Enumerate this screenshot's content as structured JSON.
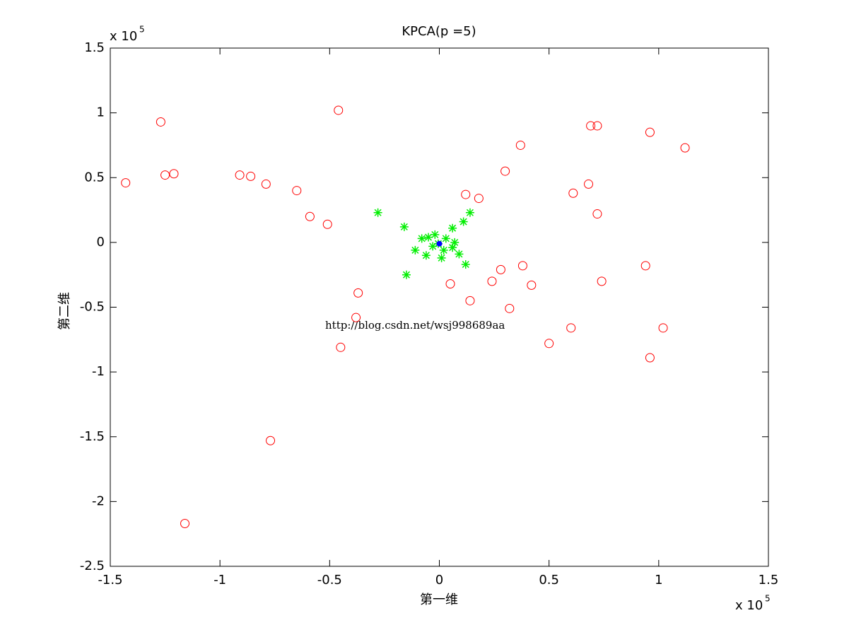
{
  "chart_data": {
    "type": "scatter",
    "title": "KPCA(p =5)",
    "x_label": "第一维",
    "y_label": "第二维",
    "x_multiplier": {
      "base": "x 10",
      "exponent": "5"
    },
    "y_multiplier": {
      "base": "x 10",
      "exponent": "5"
    },
    "annotation": "http://blog.csdn.net/wsj998689aa",
    "xlim": [
      -1.5,
      1.5
    ],
    "xticks": [
      -1.5,
      -1,
      -0.5,
      0,
      0.5,
      1,
      1.5
    ],
    "ylim": [
      -2.5,
      1.5
    ],
    "yticks": [
      -2.5,
      -2,
      -1.5,
      -1,
      -0.5,
      0,
      0.5,
      1,
      1.5
    ],
    "grid": false,
    "series": [
      {
        "color": "#ff0000",
        "marker": "circle",
        "x": [
          -1.43,
          -1.27,
          -1.25,
          -1.21,
          -0.91,
          -0.86,
          -0.79,
          -0.65,
          -0.59,
          -0.51,
          -0.46,
          -0.37,
          -0.38,
          -0.45,
          -0.77,
          -1.16,
          0.12,
          0.18,
          0.3,
          0.37,
          0.69,
          0.72,
          0.96,
          1.12,
          0.68,
          0.61,
          0.72,
          0.05,
          0.14,
          0.24,
          0.28,
          0.38,
          0.42,
          0.32,
          0.74,
          0.94,
          0.6,
          0.5,
          1.02,
          0.96
        ],
        "values": [
          0.46,
          0.93,
          0.52,
          0.53,
          0.52,
          0.51,
          0.45,
          0.4,
          0.2,
          0.14,
          1.02,
          -0.39,
          -0.58,
          -0.81,
          -1.53,
          -2.17,
          0.37,
          0.34,
          0.55,
          0.75,
          0.9,
          0.9,
          0.85,
          0.73,
          0.45,
          0.38,
          0.22,
          -0.32,
          -0.45,
          -0.3,
          -0.21,
          -0.18,
          -0.33,
          -0.51,
          -0.3,
          -0.18,
          -0.66,
          -0.78,
          -0.66,
          -0.89
        ]
      },
      {
        "color": "#00ee00",
        "marker": "star",
        "x": [
          -0.28,
          -0.16,
          0.14,
          0.11,
          0.06,
          -0.08,
          -0.11,
          -0.15,
          0.12,
          0.09,
          0.07,
          0.03,
          0.02,
          0.01,
          -0.03,
          -0.05,
          -0.06,
          -0.02,
          0.06,
          -0.005
        ],
        "values": [
          0.23,
          0.12,
          0.23,
          0.16,
          0.11,
          0.03,
          -0.06,
          -0.25,
          -0.17,
          -0.09,
          0.0,
          0.03,
          -0.06,
          -0.12,
          -0.03,
          0.04,
          -0.1,
          0.06,
          -0.04,
          -0.01
        ]
      },
      {
        "color": "#0000ff",
        "marker": "dot",
        "x": [
          0.0
        ],
        "values": [
          -0.01
        ]
      }
    ]
  }
}
